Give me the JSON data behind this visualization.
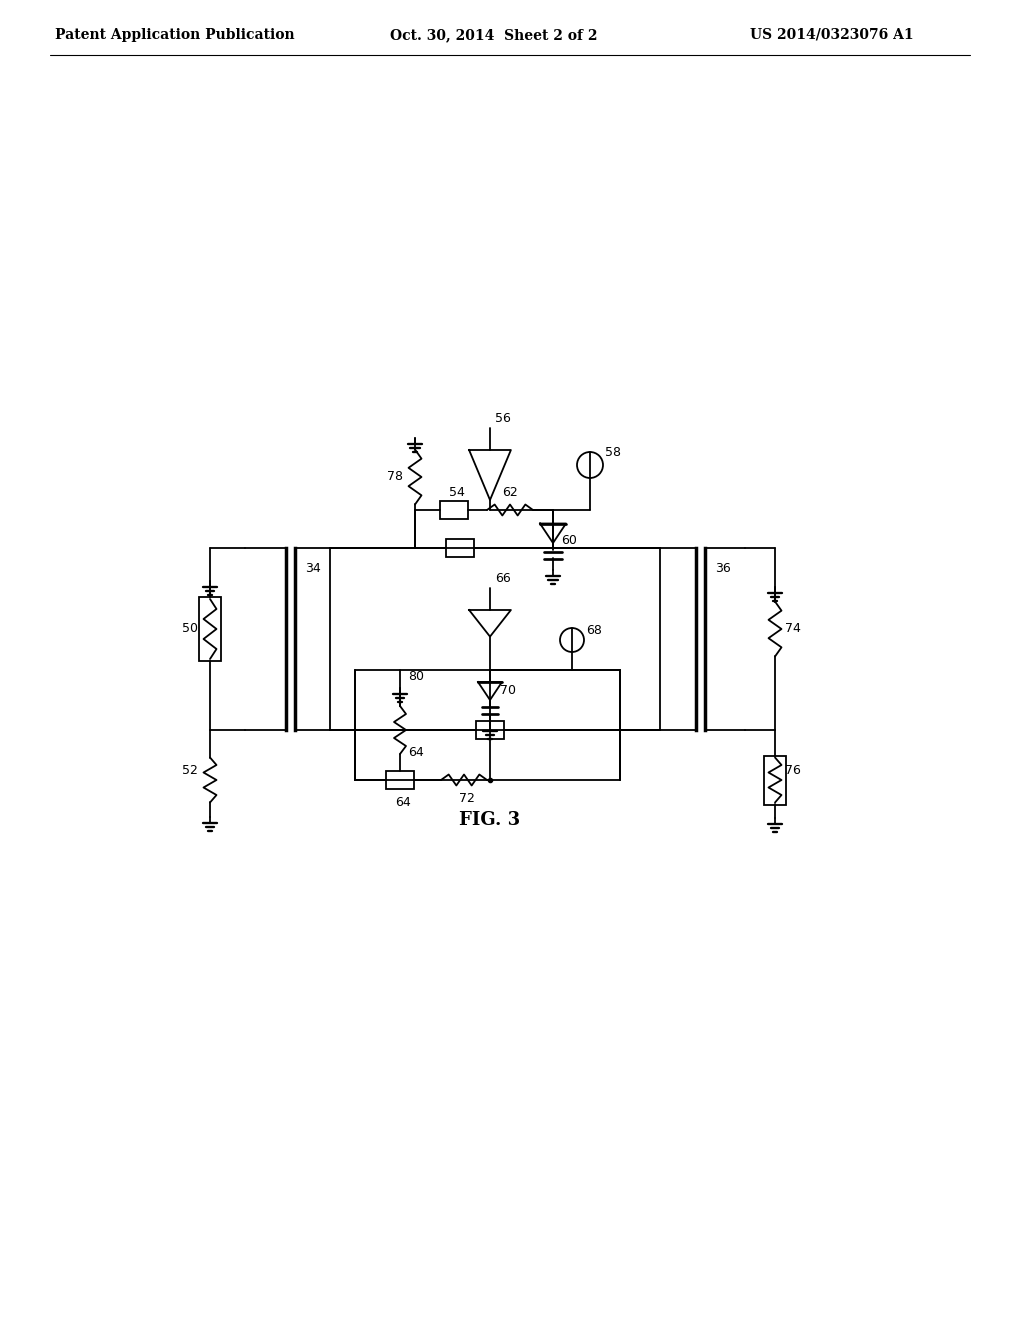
{
  "title": "FIG. 3",
  "header_left": "Patent Application Publication",
  "header_mid": "Oct. 30, 2014  Sheet 2 of 2",
  "header_right": "US 2014/0323076 A1",
  "bg_color": "#ffffff",
  "line_color": "#000000",
  "lw": 1.3,
  "font_size_header": 10,
  "font_size_label": 9,
  "font_size_title": 13
}
